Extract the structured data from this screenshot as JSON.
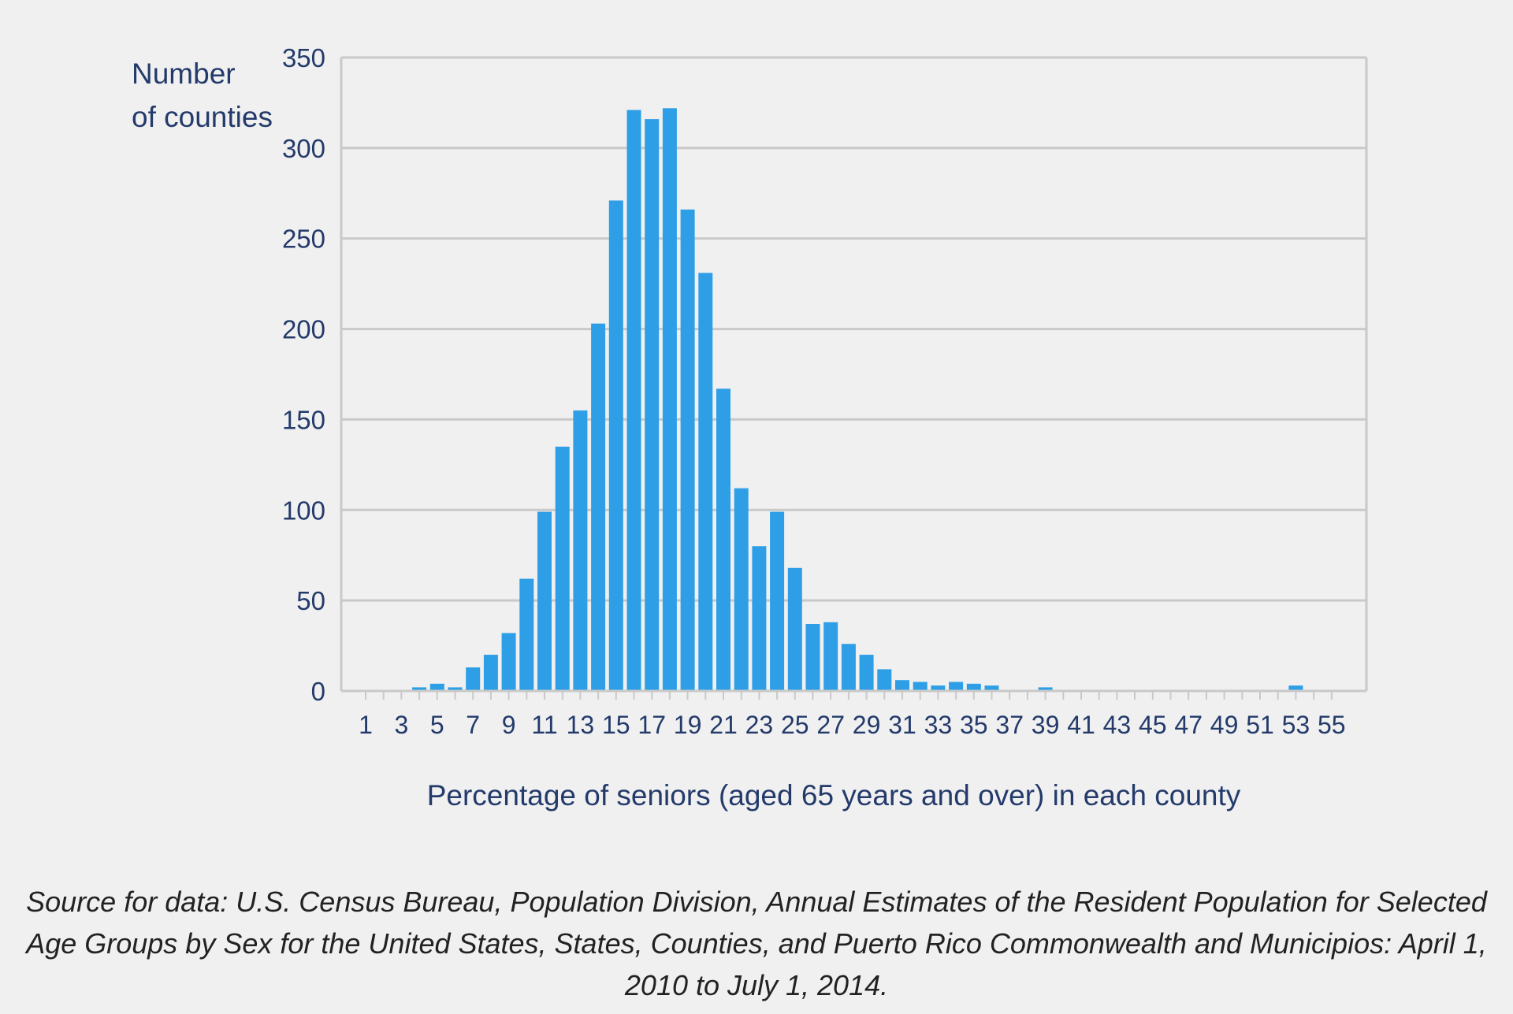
{
  "chart_data": {
    "type": "bar",
    "title": "",
    "ylabel_lines": [
      "Number",
      "of counties"
    ],
    "xlabel": "Percentage of seniors (aged 65 years and over) in each county",
    "x": [
      1,
      2,
      3,
      4,
      5,
      6,
      7,
      8,
      9,
      10,
      11,
      12,
      13,
      14,
      15,
      16,
      17,
      18,
      19,
      20,
      21,
      22,
      23,
      24,
      25,
      26,
      27,
      28,
      29,
      30,
      31,
      32,
      33,
      34,
      35,
      36,
      37,
      38,
      39,
      40,
      41,
      42,
      43,
      44,
      45,
      46,
      47,
      48,
      49,
      50,
      51,
      52,
      53,
      54,
      55
    ],
    "values": [
      0,
      0,
      0,
      2,
      4,
      2,
      13,
      20,
      32,
      62,
      99,
      135,
      155,
      203,
      271,
      321,
      316,
      322,
      266,
      231,
      167,
      112,
      80,
      99,
      68,
      37,
      38,
      26,
      20,
      12,
      6,
      5,
      3,
      5,
      4,
      3,
      0,
      0,
      2,
      0,
      0,
      0,
      0,
      0,
      0,
      0,
      0,
      0,
      0,
      0,
      0,
      0,
      3,
      0,
      0
    ],
    "x_ticks": [
      "1",
      "3",
      "5",
      "7",
      "9",
      "11",
      "13",
      "15",
      "17",
      "19",
      "21",
      "23",
      "25",
      "27",
      "29",
      "31",
      "33",
      "35",
      "37",
      "39",
      "41",
      "43",
      "45",
      "47",
      "49",
      "51",
      "53",
      "55"
    ],
    "y_ticks": [
      0,
      50,
      100,
      150,
      200,
      250,
      300,
      350
    ],
    "ylim": [
      0,
      350
    ],
    "grid": true,
    "bar_color": "#2e9ee6",
    "gridline_color": "#c9c9c9",
    "text_color": "#233a6b",
    "background": "#f0f0f0"
  },
  "source_lines": [
    "Source for data: U.S. Census Bureau, Population Division, Annual Estimates of the Resident Population for Selected",
    "Age Groups by Sex for the United States, States, Counties, and Puerto Rico Commonwealth and Municipios: April 1,",
    "2010 to July 1, 2014."
  ]
}
